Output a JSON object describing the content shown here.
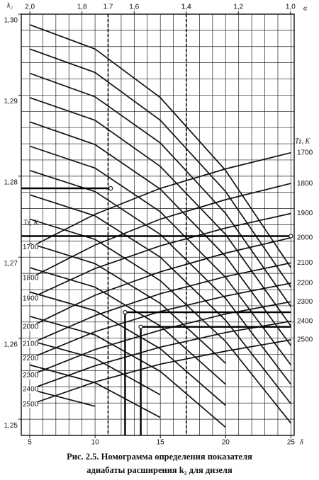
{
  "chart_data": {
    "type": "nomogram",
    "caption": [
      "Рис. 2.5. Номограмма определения показателя",
      "адиабаты расширения k₂ для дизеля"
    ],
    "y_label": "k₂",
    "x_label": "δ",
    "x2_label": "α",
    "tz_label": "Tz, K",
    "xlim": [
      4.35,
      25.25
    ],
    "ylim": [
      1.248,
      1.3
    ],
    "x2lim": [
      2.033,
      0.986
    ],
    "xticks": [
      5,
      10,
      15,
      20,
      25
    ],
    "yticks": [
      {
        "value": 1.25,
        "label": "1,25"
      },
      {
        "value": 1.26,
        "label": "1,26"
      },
      {
        "value": 1.27,
        "label": "1,27"
      },
      {
        "value": 1.28,
        "label": "1,28"
      },
      {
        "value": 1.29,
        "label": "1,29"
      },
      {
        "value": 1.3,
        "label": "1,30"
      }
    ],
    "x2ticks": [
      {
        "value": 2.0,
        "label": "2,0"
      },
      {
        "value": 1.8,
        "label": "1,8"
      },
      {
        "value": 1.6,
        "label": "1,6"
      },
      {
        "value": 1.4,
        "label": "1,4"
      },
      {
        "value": 1.2,
        "label": "1,2"
      },
      {
        "value": 1.0,
        "label": "1,0"
      }
    ],
    "reference_lines": [
      {
        "value": 1.7,
        "label": "1.7"
      },
      {
        "value": 1.4,
        "label": "1.4"
      }
    ],
    "x_grid": [
      5,
      6,
      7,
      8,
      9,
      10,
      11,
      12,
      13,
      14,
      15,
      16,
      17,
      18,
      19,
      20,
      21,
      22,
      23,
      24,
      25
    ],
    "y_grid": [
      1.25,
      1.252,
      1.254,
      1.256,
      1.258,
      1.26,
      1.262,
      1.264,
      1.266,
      1.268,
      1.27,
      1.272,
      1.274,
      1.276,
      1.278,
      1.28,
      1.282,
      1.284,
      1.286,
      1.288,
      1.29,
      1.292,
      1.294,
      1.296,
      1.298,
      1.3
    ],
    "grid": true,
    "x": [
      5,
      10,
      15,
      20,
      25
    ],
    "series": [
      {
        "color": "#111",
        "values": [
          1.2987,
          1.2957,
          1.2897,
          1.2807,
          1.2687
        ]
      },
      {
        "color": "#111",
        "values": [
          1.2957,
          1.2928,
          1.2869,
          1.2781,
          1.2663
        ]
      },
      {
        "color": "#111",
        "values": [
          1.2927,
          1.2898,
          1.2841,
          1.2754,
          1.2639
        ]
      },
      {
        "color": "#111",
        "values": [
          1.2897,
          1.2869,
          1.2812,
          1.2728,
          1.2615
        ]
      },
      {
        "color": "#111",
        "values": [
          1.2867,
          1.2839,
          1.2784,
          1.2701,
          1.2591
        ]
      },
      {
        "color": "#111",
        "values": [
          1.2837,
          1.281,
          1.2756,
          1.2675,
          1.2567
        ]
      },
      {
        "color": "#111",
        "values": [
          1.2807,
          1.2781,
          1.2728,
          1.2649,
          1.2543
        ]
      },
      {
        "color": "#111",
        "values": [
          1.2777,
          1.2751,
          1.27,
          1.2622,
          1.2519
        ]
      },
      {
        "color": "#111",
        "values": [
          1.2747,
          1.2722,
          1.2671,
          1.2596,
          1.2495
        ]
      },
      {
        "color": "#111",
        "values": [
          1.2717,
          1.2692,
          1.2643,
          1.2569,
          null
        ]
      },
      {
        "color": "#111",
        "values": [
          1.2687,
          1.2663,
          1.2615,
          1.2543,
          null
        ]
      },
      {
        "color": "#111",
        "values": [
          1.2657,
          1.2634,
          1.2587,
          1.2517,
          null
        ]
      },
      {
        "color": "#111",
        "values": [
          1.2627,
          1.2604,
          1.2559,
          1.249,
          null
        ]
      },
      {
        "color": "#111",
        "values": [
          1.2597,
          1.2575,
          1.253,
          null,
          null
        ]
      },
      {
        "color": "#111",
        "values": [
          1.2567,
          1.2545,
          1.2502,
          null,
          null
        ]
      },
      {
        "color": "#111",
        "values": [
          1.2537,
          1.2516,
          null,
          null,
          null
        ]
      }
    ],
    "tz_series": [
      {
        "name": "1700",
        "color": "#111",
        "values": [
          1.2712,
          1.2753,
          1.2785,
          1.2809,
          1.2829
        ]
      },
      {
        "name": "1800",
        "color": "#111",
        "values": [
          1.2674,
          1.2715,
          1.2747,
          1.2771,
          1.2791
        ]
      },
      {
        "name": "1900",
        "color": "#111",
        "values": [
          1.2649,
          1.2686,
          1.2714,
          1.2736,
          1.2754
        ]
      },
      {
        "name": "2000",
        "color": "#111",
        "values": [
          1.2614,
          1.2653,
          1.2682,
          1.2705,
          1.2724
        ]
      },
      {
        "name": "2100",
        "color": "#111",
        "values": [
          1.2593,
          1.2628,
          1.2655,
          1.2676,
          1.2693
        ]
      },
      {
        "name": "2200",
        "color": "#111",
        "values": [
          1.2575,
          1.2608,
          1.2633,
          1.2652,
          1.2668
        ]
      },
      {
        "name": "2300",
        "color": "#111",
        "values": [
          1.2554,
          1.2586,
          1.261,
          1.263,
          1.2645
        ]
      },
      {
        "name": "2400",
        "color": "#111",
        "values": [
          1.2537,
          1.2566,
          1.2589,
          1.2607,
          1.2621
        ]
      },
      {
        "name": "2500",
        "color": "#111",
        "values": [
          1.2518,
          1.2546,
          1.2568,
          1.2584,
          1.2598
        ]
      }
    ],
    "example_paths": [
      {
        "x": [
          12.3,
          12.3,
          25
        ],
        "y": [
          1.248,
          1.2632,
          1.2632
        ]
      },
      {
        "x": [
          13.5,
          13.5,
          25
        ],
        "y": [
          1.248,
          1.2614,
          1.2614
        ]
      },
      {
        "x": [
          11.2,
          4.35
        ],
        "y": [
          1.2785,
          1.2785
        ]
      },
      {
        "x": [
          25,
          4.35
        ],
        "y": [
          1.2726,
          1.2726
        ]
      }
    ]
  }
}
